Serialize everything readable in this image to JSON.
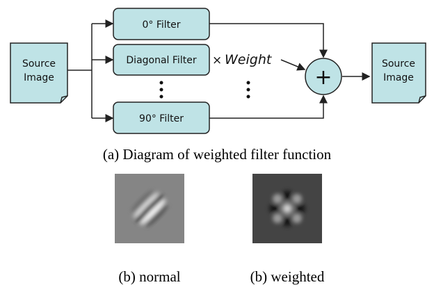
{
  "diagram": {
    "source": {
      "lines": [
        "Source",
        "Image"
      ]
    },
    "filters": [
      "0° Filter",
      "Diagonal Filter",
      "90° Filter"
    ],
    "weight_op": "×",
    "weight_label": "Weight",
    "sum_symbol": "+",
    "output": {
      "lines": [
        "Source",
        "Image"
      ]
    },
    "caption": "(a) Diagram of weighted filter function"
  },
  "images": [
    {
      "caption": "(b) normal"
    },
    {
      "caption": "(b) weighted"
    }
  ]
}
